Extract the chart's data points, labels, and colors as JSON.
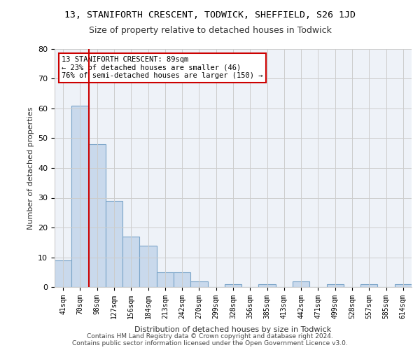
{
  "title1": "13, STANIFORTH CRESCENT, TODWICK, SHEFFIELD, S26 1JD",
  "title2": "Size of property relative to detached houses in Todwick",
  "xlabel": "Distribution of detached houses by size in Todwick",
  "ylabel": "Number of detached properties",
  "categories": [
    "41sqm",
    "70sqm",
    "98sqm",
    "127sqm",
    "156sqm",
    "184sqm",
    "213sqm",
    "242sqm",
    "270sqm",
    "299sqm",
    "328sqm",
    "356sqm",
    "385sqm",
    "413sqm",
    "442sqm",
    "471sqm",
    "499sqm",
    "528sqm",
    "557sqm",
    "585sqm",
    "614sqm"
  ],
  "values": [
    9,
    61,
    48,
    29,
    17,
    14,
    5,
    5,
    2,
    0,
    1,
    0,
    1,
    0,
    2,
    0,
    1,
    0,
    1,
    0,
    1
  ],
  "bar_color": "#c9d9ec",
  "bar_edge_color": "#7aa4c8",
  "grid_color": "#cccccc",
  "background_color": "#eef2f8",
  "property_line_x": 1,
  "annotation_text": "13 STANIFORTH CRESCENT: 89sqm\n← 23% of detached houses are smaller (46)\n76% of semi-detached houses are larger (150) →",
  "annotation_box_edge": "#cc0000",
  "ylim": [
    0,
    80
  ],
  "yticks": [
    0,
    10,
    20,
    30,
    40,
    50,
    60,
    70,
    80
  ],
  "footer": "Contains HM Land Registry data © Crown copyright and database right 2024.\nContains public sector information licensed under the Open Government Licence v3.0.",
  "property_line_color": "#cc0000"
}
